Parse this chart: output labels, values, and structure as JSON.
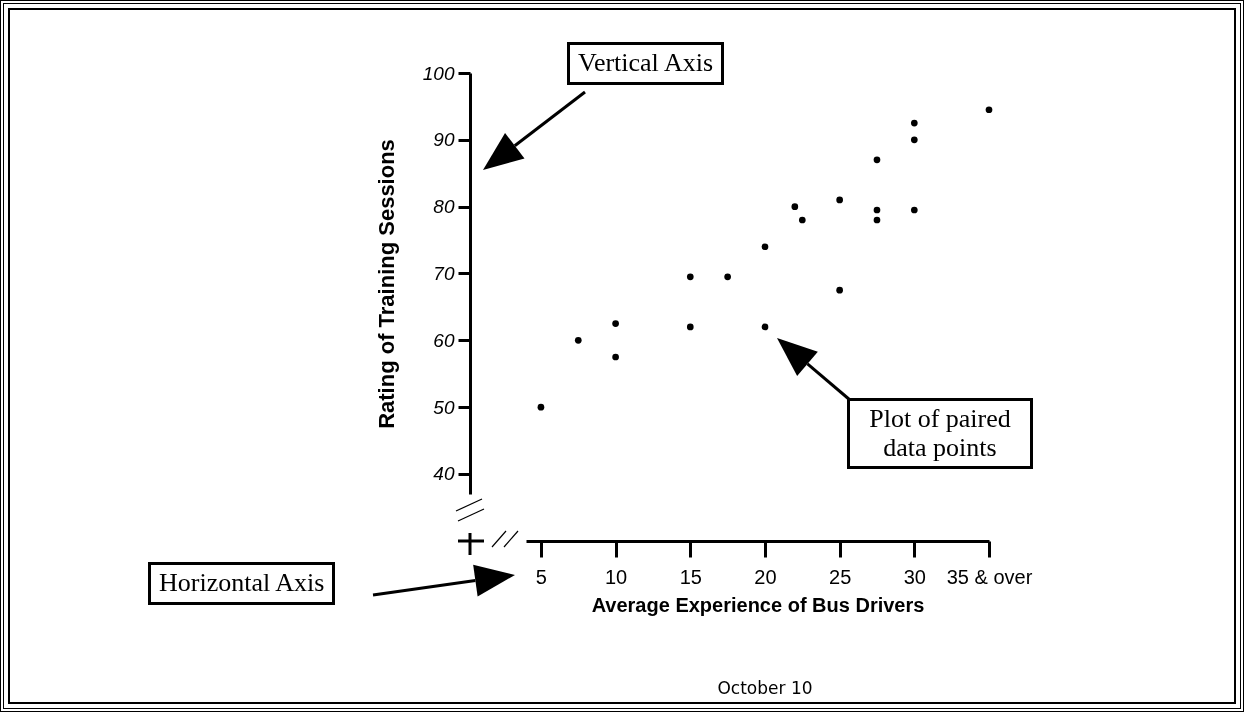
{
  "chart_data": {
    "type": "scatter",
    "xlabel": "Average Experience of Bus Drivers",
    "ylabel": "Rating of Training Sessions",
    "x": [
      5,
      7.5,
      10,
      10,
      15,
      15,
      17.5,
      20,
      20,
      22,
      22.5,
      25,
      25,
      27.5,
      27.5,
      27.5,
      30,
      30,
      30,
      35
    ],
    "values": [
      50,
      60,
      57.5,
      62.5,
      62,
      69.5,
      69.5,
      62,
      74,
      80,
      78,
      67.5,
      81,
      78,
      79.5,
      87,
      79.5,
      90,
      92.5,
      94.5
    ],
    "color": "#000000",
    "marker": "circle",
    "grid": false,
    "xlim": [
      4,
      35
    ],
    "ylim": [
      37,
      100
    ],
    "xticks": [
      5,
      10,
      15,
      20,
      25,
      30,
      {
        "value": 35,
        "label": "35 & over"
      }
    ],
    "yticks": [
      40,
      50,
      60,
      70,
      80,
      90,
      100
    ],
    "annotations": [
      "Vertical Axis",
      "Plot of paired data points",
      "Horizontal Axis",
      "October 10"
    ]
  }
}
